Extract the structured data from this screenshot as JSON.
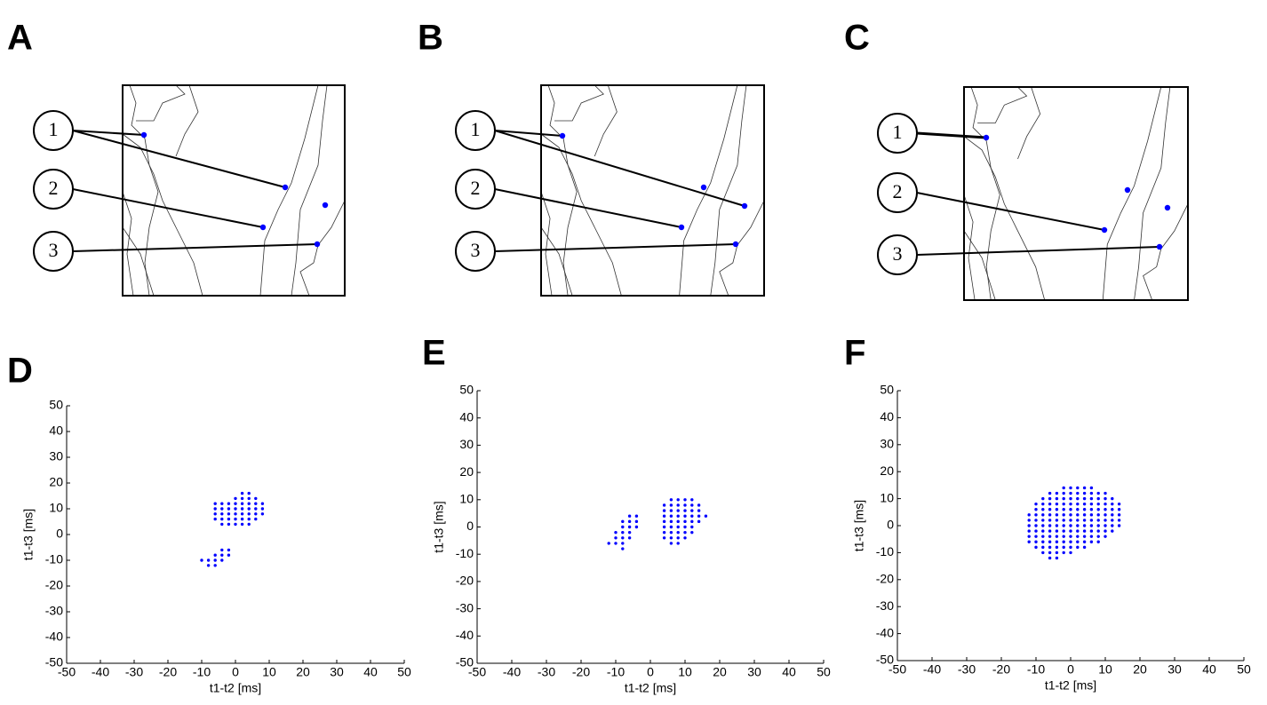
{
  "panels": [
    {
      "letter": "A",
      "electrodes": [
        "1",
        "2",
        "3"
      ]
    },
    {
      "letter": "B",
      "electrodes": [
        "1",
        "2",
        "3"
      ]
    },
    {
      "letter": "C",
      "electrodes": [
        "1",
        "2",
        "3"
      ]
    }
  ],
  "chart_data": [
    {
      "type": "scatter",
      "panel": "D",
      "x_label": "t1-t2 [ms]",
      "y_label": "t1-t3 [ms]",
      "color": "#0000ff",
      "xlim": [
        -50,
        50
      ],
      "ylim": [
        -50,
        50
      ],
      "xticks": [
        -50,
        -40,
        -30,
        -20,
        -10,
        0,
        10,
        20,
        30,
        40,
        50
      ],
      "yticks": [
        -50,
        -40,
        -30,
        -20,
        -10,
        0,
        10,
        20,
        30,
        40,
        50
      ],
      "x": [
        2,
        4,
        0,
        2,
        4,
        6,
        -6,
        -4,
        -2,
        0,
        2,
        4,
        6,
        8,
        -6,
        -4,
        -2,
        0,
        2,
        4,
        6,
        8,
        -6,
        -4,
        -2,
        0,
        2,
        4,
        6,
        8,
        -6,
        -4,
        -2,
        0,
        2,
        4,
        6,
        -4,
        -2,
        0,
        2,
        4,
        -4,
        -2,
        -6,
        -4,
        -2,
        -10,
        -8,
        -6,
        -4,
        -8,
        -6
      ],
      "values": [
        16,
        16,
        14,
        14,
        14,
        14,
        12,
        12,
        12,
        12,
        12,
        12,
        12,
        12,
        10,
        10,
        10,
        10,
        10,
        10,
        10,
        10,
        8,
        8,
        8,
        8,
        8,
        8,
        8,
        8,
        6,
        6,
        6,
        6,
        6,
        6,
        6,
        4,
        4,
        4,
        4,
        4,
        -6,
        -6,
        -8,
        -8,
        -8,
        -10,
        -10,
        -10,
        -10,
        -12,
        -12
      ]
    },
    {
      "type": "scatter",
      "panel": "E",
      "x_label": "t1-t2 [ms]",
      "y_label": "t1-t3 [ms]",
      "color": "#0000ff",
      "xlim": [
        -50,
        50
      ],
      "ylim": [
        -50,
        50
      ],
      "xticks": [
        -50,
        -40,
        -30,
        -20,
        -10,
        0,
        10,
        20,
        30,
        40,
        50
      ],
      "yticks": [
        -50,
        -40,
        -30,
        -20,
        -10,
        0,
        10,
        20,
        30,
        40,
        50
      ],
      "x": [
        -6,
        -4,
        -8,
        -6,
        -4,
        -8,
        -6,
        -4,
        -10,
        -8,
        -6,
        -10,
        -8,
        -6,
        -12,
        -10,
        -8,
        -8,
        6,
        8,
        10,
        12,
        4,
        6,
        8,
        10,
        12,
        14,
        4,
        6,
        8,
        10,
        12,
        14,
        4,
        6,
        8,
        10,
        12,
        14,
        16,
        4,
        6,
        8,
        10,
        12,
        14,
        4,
        6,
        8,
        10,
        12,
        4,
        6,
        8,
        10,
        12,
        4,
        6,
        8,
        10,
        6,
        8
      ],
      "values": [
        4,
        4,
        2,
        2,
        2,
        0,
        0,
        0,
        -2,
        -2,
        -2,
        -4,
        -4,
        -4,
        -6,
        -6,
        -6,
        -8,
        10,
        10,
        10,
        10,
        8,
        8,
        8,
        8,
        8,
        8,
        6,
        6,
        6,
        6,
        6,
        6,
        4,
        4,
        4,
        4,
        4,
        4,
        4,
        2,
        2,
        2,
        2,
        2,
        2,
        0,
        0,
        0,
        0,
        0,
        -2,
        -2,
        -2,
        -2,
        -2,
        -4,
        -4,
        -4,
        -4,
        -6,
        -6
      ]
    },
    {
      "type": "scatter",
      "panel": "F",
      "x_label": "t1-t2 [ms]",
      "y_label": "t1-t3 [ms]",
      "color": "#0000ff",
      "xlim": [
        -50,
        50
      ],
      "ylim": [
        -50,
        50
      ],
      "xticks": [
        -50,
        -40,
        -30,
        -20,
        -10,
        0,
        10,
        20,
        30,
        40,
        50
      ],
      "yticks": [
        -50,
        -40,
        -30,
        -20,
        -10,
        0,
        10,
        20,
        30,
        40,
        50
      ],
      "x": [
        -2,
        0,
        2,
        4,
        6,
        -6,
        -4,
        -2,
        0,
        2,
        4,
        6,
        8,
        10,
        -8,
        -6,
        -4,
        -2,
        0,
        2,
        4,
        6,
        8,
        10,
        12,
        -10,
        -8,
        -6,
        -4,
        -2,
        0,
        2,
        4,
        6,
        8,
        10,
        12,
        14,
        -10,
        -8,
        -6,
        -4,
        -2,
        0,
        2,
        4,
        6,
        8,
        10,
        12,
        14,
        -12,
        -10,
        -8,
        -6,
        -4,
        -2,
        0,
        2,
        4,
        6,
        8,
        10,
        12,
        14,
        -12,
        -10,
        -8,
        -6,
        -4,
        -2,
        0,
        2,
        4,
        6,
        8,
        10,
        12,
        14,
        -12,
        -10,
        -8,
        -6,
        -4,
        -2,
        0,
        2,
        4,
        6,
        8,
        10,
        12,
        14,
        -12,
        -10,
        -8,
        -6,
        -4,
        -2,
        0,
        2,
        4,
        6,
        8,
        10,
        12,
        -12,
        -10,
        -8,
        -6,
        -4,
        -2,
        0,
        2,
        4,
        6,
        8,
        10,
        -12,
        -10,
        -8,
        -6,
        -4,
        -2,
        0,
        2,
        4,
        6,
        8,
        -10,
        -8,
        -6,
        -4,
        -2,
        0,
        2,
        4,
        -8,
        -6,
        -4,
        -2,
        0,
        -6,
        -4
      ],
      "values": [
        14,
        14,
        14,
        14,
        14,
        12,
        12,
        12,
        12,
        12,
        12,
        12,
        12,
        12,
        10,
        10,
        10,
        10,
        10,
        10,
        10,
        10,
        10,
        10,
        10,
        8,
        8,
        8,
        8,
        8,
        8,
        8,
        8,
        8,
        8,
        8,
        8,
        8,
        6,
        6,
        6,
        6,
        6,
        6,
        6,
        6,
        6,
        6,
        6,
        6,
        6,
        4,
        4,
        4,
        4,
        4,
        4,
        4,
        4,
        4,
        4,
        4,
        4,
        4,
        4,
        2,
        2,
        2,
        2,
        2,
        2,
        2,
        2,
        2,
        2,
        2,
        2,
        2,
        2,
        0,
        0,
        0,
        0,
        0,
        0,
        0,
        0,
        0,
        0,
        0,
        0,
        0,
        0,
        -2,
        -2,
        -2,
        -2,
        -2,
        -2,
        -2,
        -2,
        -2,
        -2,
        -2,
        -2,
        -2,
        -4,
        -4,
        -4,
        -4,
        -4,
        -4,
        -4,
        -4,
        -4,
        -4,
        -4,
        -4,
        -6,
        -6,
        -6,
        -6,
        -6,
        -6,
        -6,
        -6,
        -6,
        -6,
        -6,
        -8,
        -8,
        -8,
        -8,
        -8,
        -8,
        -8,
        -8,
        -10,
        -10,
        -10,
        -10,
        -10,
        -12,
        -12
      ]
    }
  ]
}
